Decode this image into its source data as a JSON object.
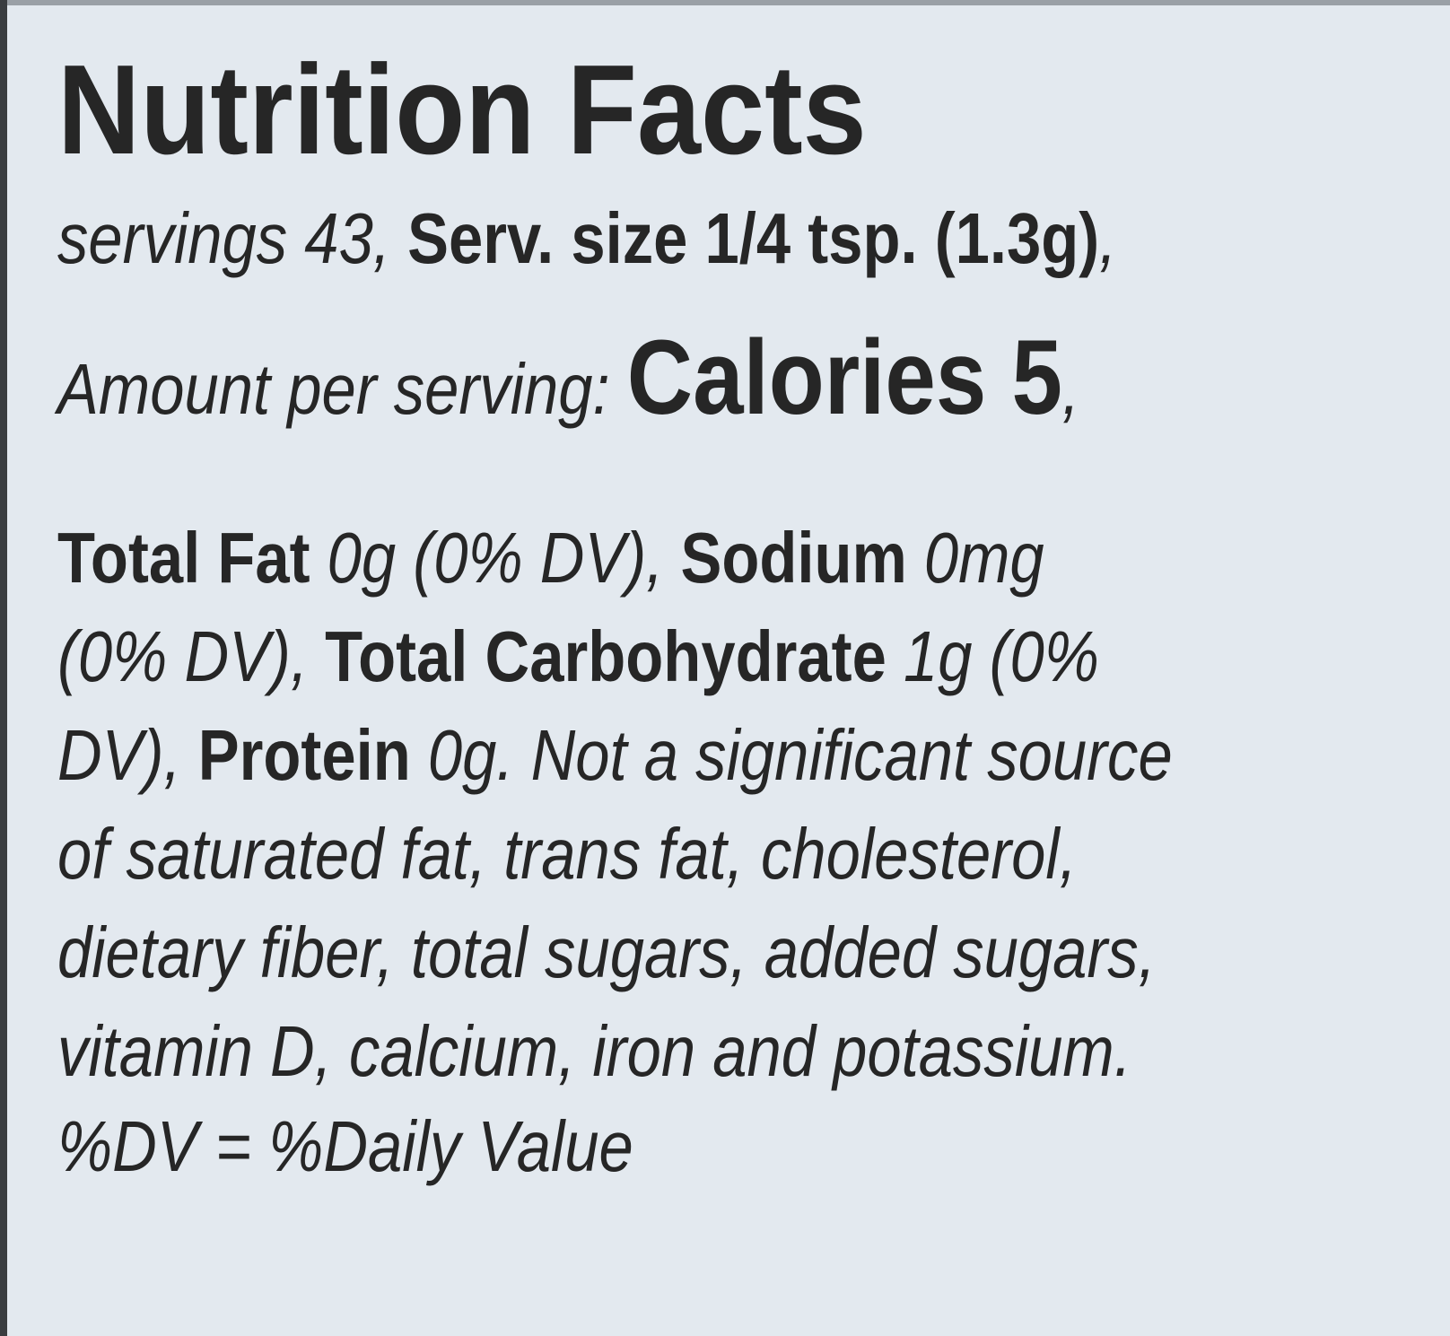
{
  "label": {
    "title": "Nutrition Facts",
    "servings": {
      "prefix": "servings 43, ",
      "serving_size": "Serv. size 1/4 tsp. (1.3g)",
      "suffix": ","
    },
    "amount": {
      "prefix": "Amount per serving: ",
      "calories": "Calories 5",
      "suffix": ","
    },
    "line4": {
      "a_b": "Total Fat ",
      "a_i": "0g (0% DV), ",
      "b_b": "Sodium ",
      "b_i": "0mg"
    },
    "line5": {
      "a_i": "(0% DV), ",
      "b_b": "Total Carbohydrate ",
      "b_i": "1g (0%"
    },
    "line6": {
      "a_i": "DV), ",
      "b_b": "Protein ",
      "b_i": "0g. Not a significant source"
    },
    "line7": "of saturated fat, trans fat, cholesterol,",
    "line8": "dietary fiber, total sugars, added sugars,",
    "line9": "vitamin D, calcium, iron and potassium.",
    "line10": "%DV = %Daily Value"
  },
  "colors": {
    "background": "#e3e9ef",
    "text": "#262626"
  }
}
